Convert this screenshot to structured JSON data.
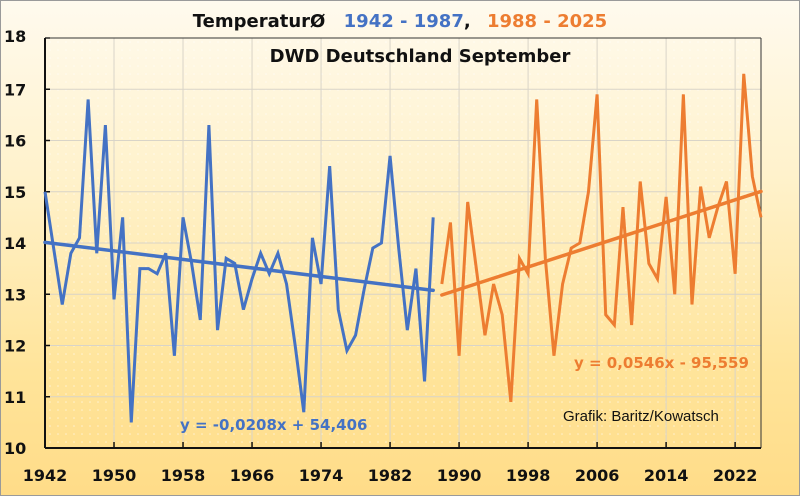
{
  "chart_data": {
    "type": "line",
    "title": {
      "prefix": "TemperaturØ",
      "range1": "1942 - 1987",
      "separator": ",",
      "range2": "1988 - 2025"
    },
    "subtitle": "DWD Deutschland September",
    "xlabel": "",
    "ylabel": "",
    "xlim": [
      1942,
      2025
    ],
    "ylim": [
      10,
      18
    ],
    "x_ticks": [
      "1942",
      "1950",
      "1958",
      "1966",
      "1974",
      "1982",
      "1990",
      "1998",
      "2006",
      "2014",
      "2022"
    ],
    "y_ticks": [
      "10",
      "11",
      "12",
      "13",
      "14",
      "15",
      "16",
      "17",
      "18"
    ],
    "grid": true,
    "series": [
      {
        "name": "1942 - 1987",
        "color": "#4472c4",
        "x_start": 1942,
        "values": [
          15.0,
          13.9,
          12.8,
          13.8,
          14.1,
          16.8,
          13.8,
          16.3,
          12.9,
          14.5,
          10.5,
          13.5,
          13.5,
          13.4,
          13.8,
          11.8,
          14.5,
          13.6,
          12.5,
          16.3,
          12.3,
          13.7,
          13.6,
          12.7,
          13.3,
          13.8,
          13.4,
          13.8,
          13.2,
          12.0,
          10.7,
          14.1,
          13.2,
          15.5,
          12.7,
          11.9,
          12.2,
          13.1,
          13.9,
          14.0,
          15.7,
          13.9,
          12.3,
          13.5,
          11.3,
          14.5
        ],
        "trend": {
          "slope": -0.0208,
          "intercept": 54.406,
          "label": "y = -0,0208x + 54,406"
        }
      },
      {
        "name": "1988 - 2025",
        "color": "#ed7d31",
        "x_start": 1988,
        "values": [
          13.2,
          14.4,
          11.8,
          14.8,
          13.5,
          12.2,
          13.2,
          12.6,
          10.9,
          13.7,
          13.4,
          16.8,
          13.7,
          11.8,
          13.2,
          13.9,
          14.0,
          15.0,
          16.9,
          12.6,
          12.4,
          14.7,
          12.4,
          15.2,
          13.6,
          13.3,
          14.9,
          13.0,
          16.9,
          12.8,
          15.1,
          14.1,
          14.7,
          15.2,
          13.4,
          17.3,
          15.3,
          14.5
        ],
        "trend": {
          "slope": 0.0546,
          "intercept": -95.559,
          "label": "y = 0,0546x - 95,559"
        }
      }
    ],
    "annotations": {
      "credit": "Grafik: Baritz/Kowatsch"
    },
    "legend": "none"
  }
}
